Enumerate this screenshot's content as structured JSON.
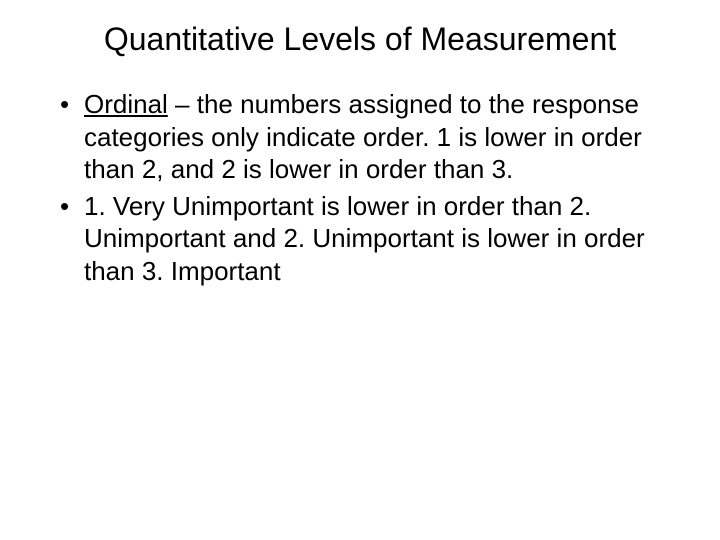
{
  "title": "Quantitative Levels of Measurement",
  "bullets": [
    {
      "term": "Ordinal",
      "text": " – the numbers assigned to the response categories only indicate order. 1 is lower in order than 2, and 2 is lower in order than 3."
    },
    {
      "term": "",
      "text": "1. Very Unimportant is lower in order than 2. Unimportant and 2. Unimportant is lower in order than 3. Important"
    }
  ],
  "styling": {
    "background_color": "#ffffff",
    "text_color": "#000000",
    "title_fontsize": 32,
    "body_fontsize": 26,
    "font_family": "Arial"
  }
}
